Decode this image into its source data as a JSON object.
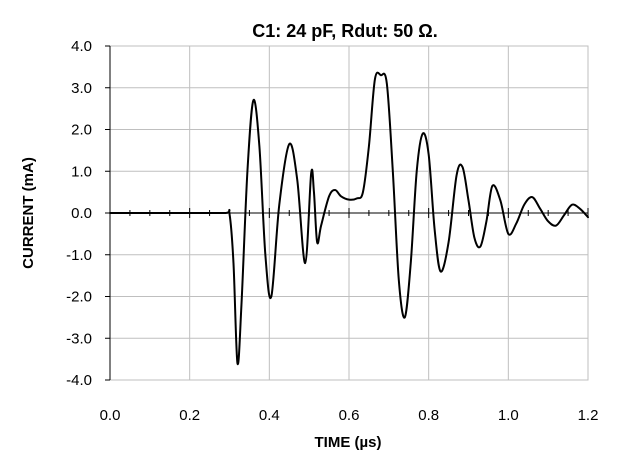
{
  "chart_data": {
    "type": "line",
    "title": "C1: 24 pF, Rdut: 50 Ω.",
    "xlabel": "TIME (µs)",
    "ylabel": "CURRENT (mA)",
    "xlim": [
      0.0,
      1.2
    ],
    "ylim": [
      -4.0,
      4.0
    ],
    "x_ticks": [
      "0.0",
      "0.2",
      "0.4",
      "0.6",
      "0.8",
      "1.0",
      "1.2"
    ],
    "y_ticks": [
      "-4.0",
      "-3.0",
      "-2.0",
      "-1.0",
      "0.0",
      "1.0",
      "2.0",
      "3.0",
      "4.0"
    ],
    "grid": true,
    "legend": false,
    "colors": {
      "line": "#000000",
      "grid": "#bfbfbf",
      "axis": "#000000"
    },
    "series": [
      {
        "x": [
          0.0,
          0.1,
          0.2,
          0.29,
          0.3,
          0.31,
          0.32,
          0.33,
          0.345,
          0.36,
          0.375,
          0.39,
          0.405,
          0.425,
          0.45,
          0.47,
          0.49,
          0.505,
          0.512,
          0.52,
          0.53,
          0.55,
          0.565,
          0.58,
          0.6,
          0.62,
          0.635,
          0.65,
          0.665,
          0.68,
          0.695,
          0.71,
          0.725,
          0.74,
          0.755,
          0.77,
          0.785,
          0.8,
          0.815,
          0.83,
          0.85,
          0.87,
          0.885,
          0.9,
          0.915,
          0.93,
          0.945,
          0.96,
          0.98,
          1.0,
          1.02,
          1.04,
          1.06,
          1.08,
          1.1,
          1.12,
          1.14,
          1.16,
          1.18,
          1.2
        ],
        "y": [
          0.0,
          0.0,
          0.0,
          0.0,
          -0.02,
          -1.2,
          -3.6,
          -2.2,
          1.0,
          2.7,
          1.6,
          -1.0,
          -2.0,
          0.2,
          1.65,
          0.8,
          -1.2,
          0.95,
          0.5,
          -0.7,
          -0.3,
          0.4,
          0.55,
          0.4,
          0.32,
          0.35,
          0.5,
          1.6,
          3.2,
          3.3,
          3.1,
          1.0,
          -1.6,
          -2.5,
          -1.2,
          1.0,
          1.9,
          1.4,
          -0.4,
          -1.4,
          -0.7,
          0.9,
          1.1,
          0.3,
          -0.6,
          -0.8,
          -0.2,
          0.65,
          0.3,
          -0.5,
          -0.25,
          0.2,
          0.38,
          0.1,
          -0.2,
          -0.3,
          -0.05,
          0.2,
          0.1,
          -0.1
        ]
      }
    ]
  }
}
